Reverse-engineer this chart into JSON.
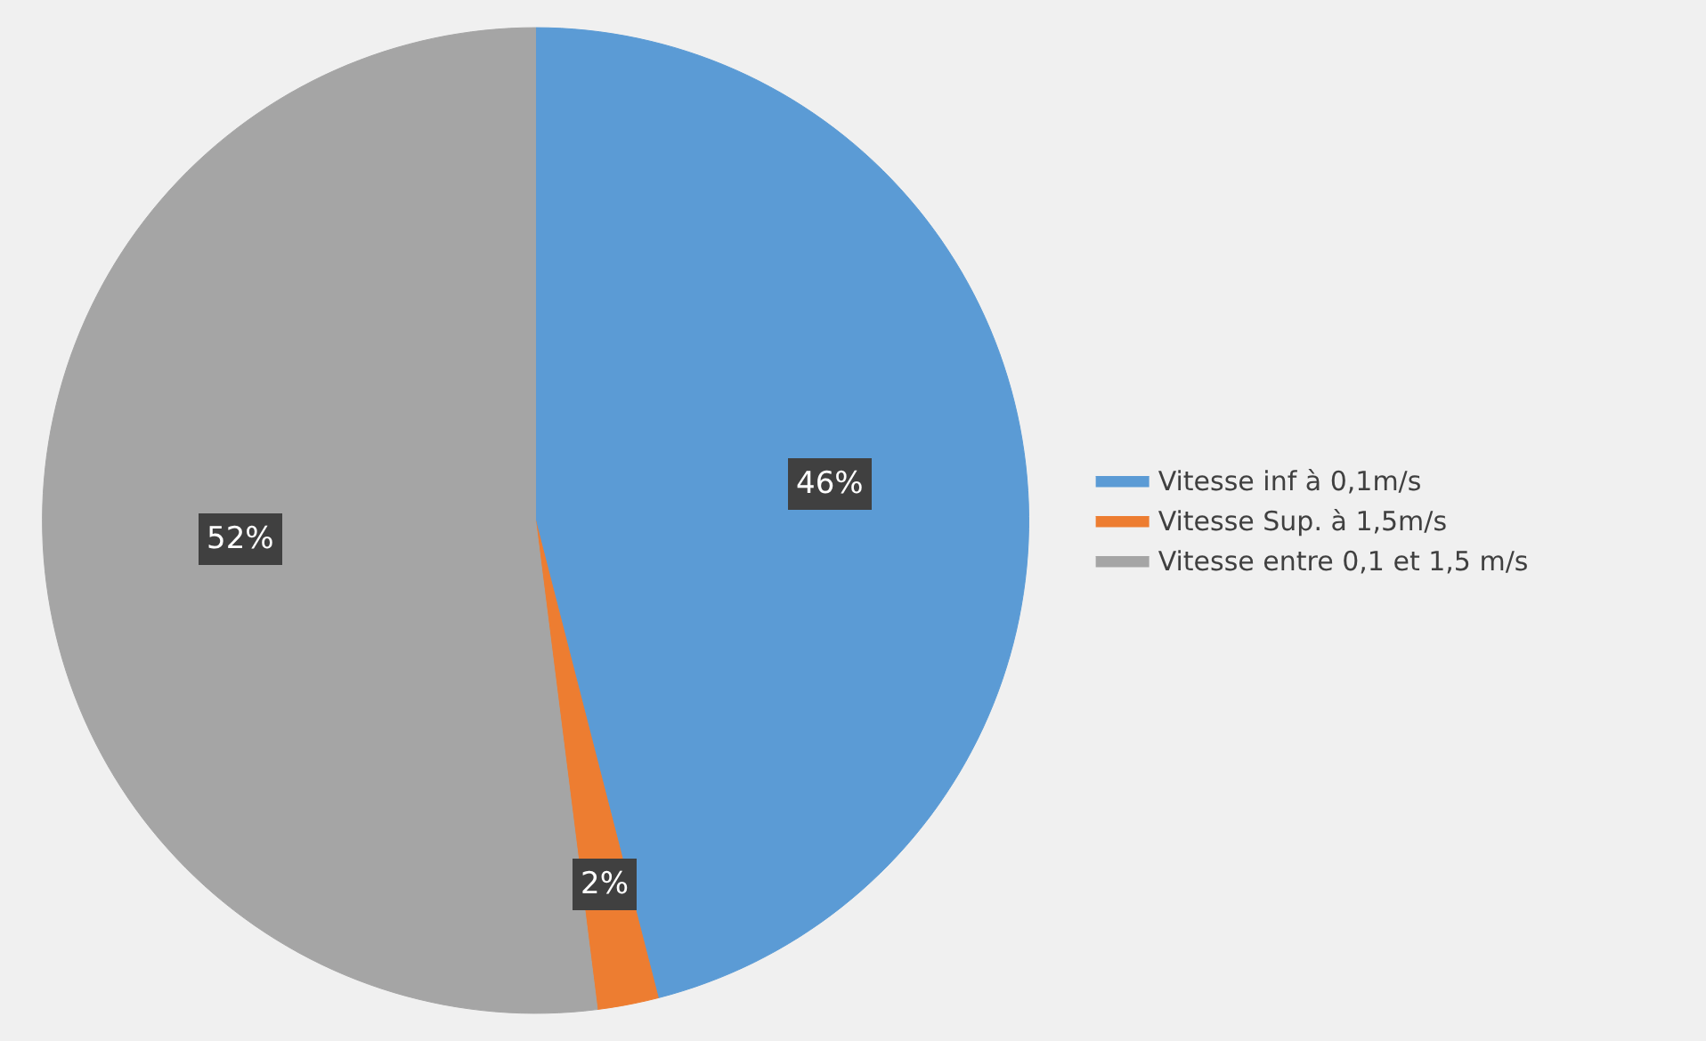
{
  "chart_data": {
    "type": "pie",
    "categories": [
      "Vitesse inf à 0,1m/s",
      "Vitesse Sup. à 1,5m/s",
      "Vitesse entre 0,1 et 1,5 m/s"
    ],
    "values": [
      46,
      2,
      52
    ],
    "value_labels": [
      "46%",
      "2%",
      "52%"
    ],
    "colors": [
      "#5b9bd5",
      "#ed7d31",
      "#a5a5a5"
    ],
    "legend": "right"
  }
}
